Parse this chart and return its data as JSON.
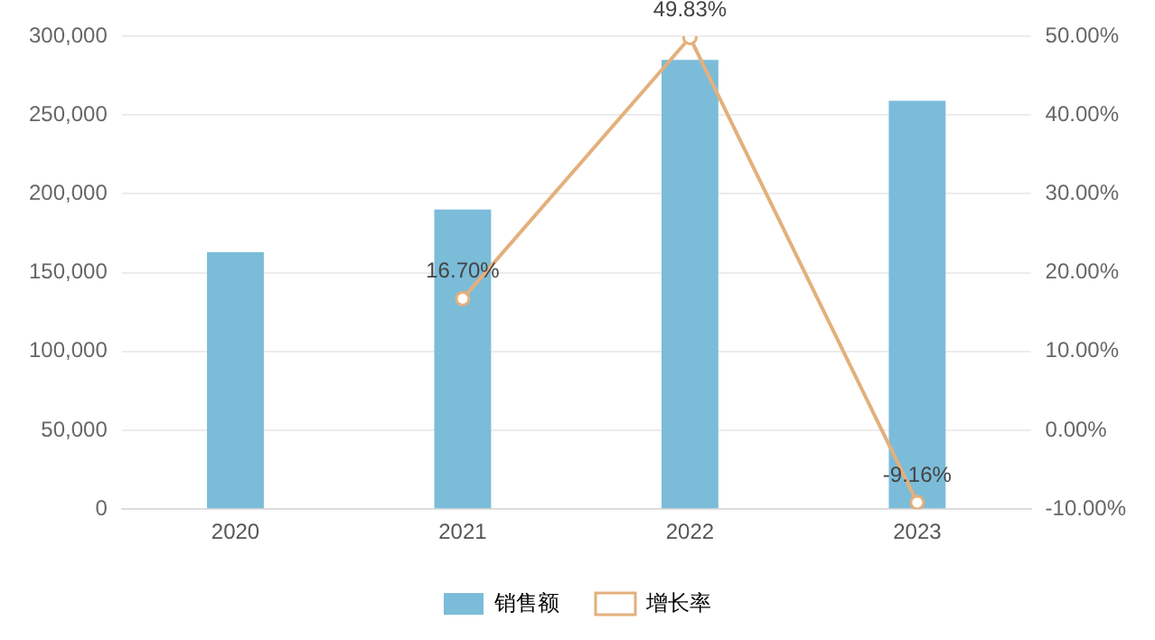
{
  "chart_data": {
    "type": "bar",
    "categories": [
      "2020",
      "2021",
      "2022",
      "2023"
    ],
    "series": [
      {
        "name": "销售额",
        "color": "#7bbcd9",
        "values": [
          163000,
          190000,
          285000,
          259000
        ]
      },
      {
        "name": "增长率",
        "type": "line",
        "axis": "y2",
        "color": "#e3b07c",
        "marker": "circle",
        "values": [
          null,
          16.7,
          49.83,
          -9.16
        ],
        "value_labels": [
          null,
          "16.70%",
          "49.83%",
          "-9.16%"
        ]
      }
    ],
    "ylim": [
      0,
      300000
    ],
    "yticks": [
      {
        "value": 0,
        "label": "0"
      },
      {
        "value": 50000,
        "label": "50,000"
      },
      {
        "value": 100000,
        "label": "100,000"
      },
      {
        "value": 150000,
        "label": "150,000"
      },
      {
        "value": 200000,
        "label": "200,000"
      },
      {
        "value": 250000,
        "label": "250,000"
      },
      {
        "value": 300000,
        "label": "300,000"
      }
    ],
    "y2lim": [
      -10,
      50
    ],
    "y2ticks": [
      {
        "value": -10,
        "label": "-10.00%"
      },
      {
        "value": 0,
        "label": "0.00%"
      },
      {
        "value": 10,
        "label": "10.00%"
      },
      {
        "value": 20,
        "label": "20.00%"
      },
      {
        "value": 30,
        "label": "30.00%"
      },
      {
        "value": 40,
        "label": "40.00%"
      },
      {
        "value": 50,
        "label": "50.00%"
      }
    ],
    "grid": "y",
    "legend": "bottom"
  }
}
